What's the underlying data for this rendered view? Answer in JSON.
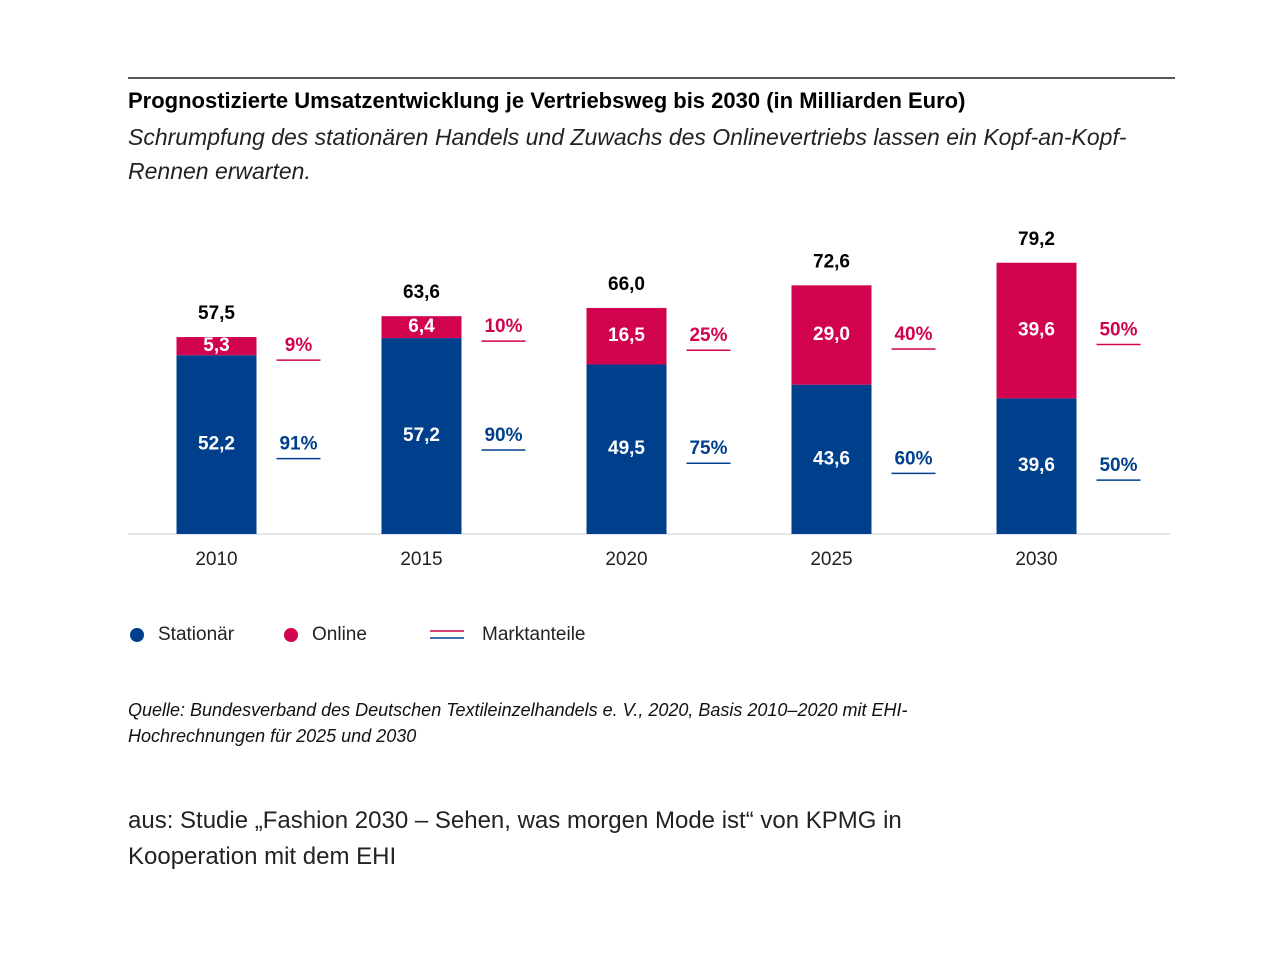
{
  "chart_data": {
    "type": "bar",
    "stacked": true,
    "title": "Prognostizierte Umsatzentwicklung je Vertriebsweg bis 2030 (in Milliarden Euro)",
    "subtitle": "Schrumpfung des stationären Handels und Zuwachs des Onlinevertriebs lassen ein Kopf-an-Kopf-Rennen erwarten.",
    "categories": [
      "2010",
      "2015",
      "2020",
      "2025",
      "2030"
    ],
    "series": [
      {
        "name": "Stationär",
        "color": "#003f8c",
        "values": [
          52.2,
          57.2,
          49.5,
          43.6,
          39.6
        ],
        "value_labels": [
          "52,2",
          "57,2",
          "49,5",
          "43,6",
          "39,6"
        ],
        "shares": [
          91,
          90,
          75,
          60,
          50
        ],
        "share_labels": [
          "91%",
          "90%",
          "75%",
          "60%",
          "50%"
        ]
      },
      {
        "name": "Online",
        "color": "#d1034f",
        "values": [
          5.3,
          6.4,
          16.5,
          29.0,
          39.6
        ],
        "value_labels": [
          "5,3",
          "6,4",
          "16,5",
          "29,0",
          "39,6"
        ],
        "shares": [
          9,
          10,
          25,
          40,
          50
        ],
        "share_labels": [
          "9%",
          "10%",
          "25%",
          "40%",
          "50%"
        ]
      }
    ],
    "totals": [
      57.5,
      63.6,
      66.0,
      72.6,
      79.2
    ],
    "total_labels": [
      "57,5",
      "63,6",
      "66,0",
      "72,6",
      "79,2"
    ],
    "share_legend": "Marktanteile",
    "ylim": [
      0,
      80
    ]
  },
  "source": "Quelle: Bundesverband des Deutschen Textileinzelhandels e. V., 2020, Basis 2010–2020 mit EHI-Hochrechnungen für 2025 und 2030",
  "footer": "aus: Studie „Fashion 2030 – Sehen, was morgen Mode ist“ von KPMG in Kooperation mit dem EHI"
}
